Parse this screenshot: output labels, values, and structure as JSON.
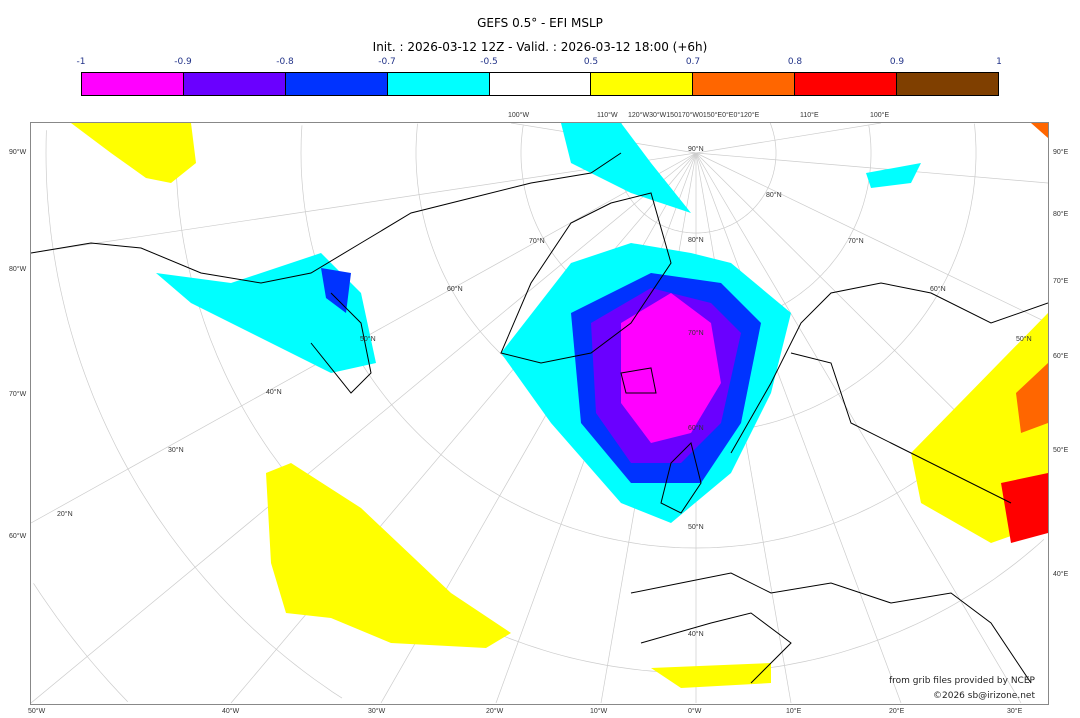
{
  "title": "GEFS 0.5° - EFI MSLP",
  "subtitle": "Init. : 2026-03-12 12Z - Valid. : 2026-03-12 18:00 (+6h)",
  "colorbar": {
    "ticks": [
      "-1",
      "-0.9",
      "-0.8",
      "-0.7",
      "-0.5",
      "0.5",
      "0.7",
      "0.8",
      "0.9",
      "1"
    ],
    "colors": [
      "#ff00ff",
      "#6a00ff",
      "#0033ff",
      "#00ffff",
      "#ffffff",
      "#ffff00",
      "#ff6600",
      "#ff0000",
      "#7f3f00"
    ]
  },
  "labels": {
    "top": [
      "100°W",
      "110°W",
      "120°W30°W150170°W0150°E0°E0°120°E",
      "110°E",
      "100°E"
    ],
    "left": [
      "90°W",
      "80°W",
      "70°W",
      "60°W"
    ],
    "right": [
      "90°E",
      "80°E",
      "70°E",
      "60°E",
      "50°E",
      "40°E"
    ],
    "bottom": [
      "50°W",
      "40°W",
      "30°W",
      "20°W",
      "10°W",
      "0°W",
      "10°E",
      "20°E",
      "30°E"
    ],
    "lat": [
      "90°N",
      "80°N",
      "70°N",
      "60°N",
      "50°N",
      "40°N",
      "30°N",
      "20°N",
      "50°N",
      "60°N",
      "70°N",
      "40°N",
      "50°N",
      "60°N",
      "70°N",
      "80°N"
    ]
  },
  "credits": {
    "source": "from grib files provided by NCEP",
    "copyright": "©2026 sb@irizone.net"
  }
}
